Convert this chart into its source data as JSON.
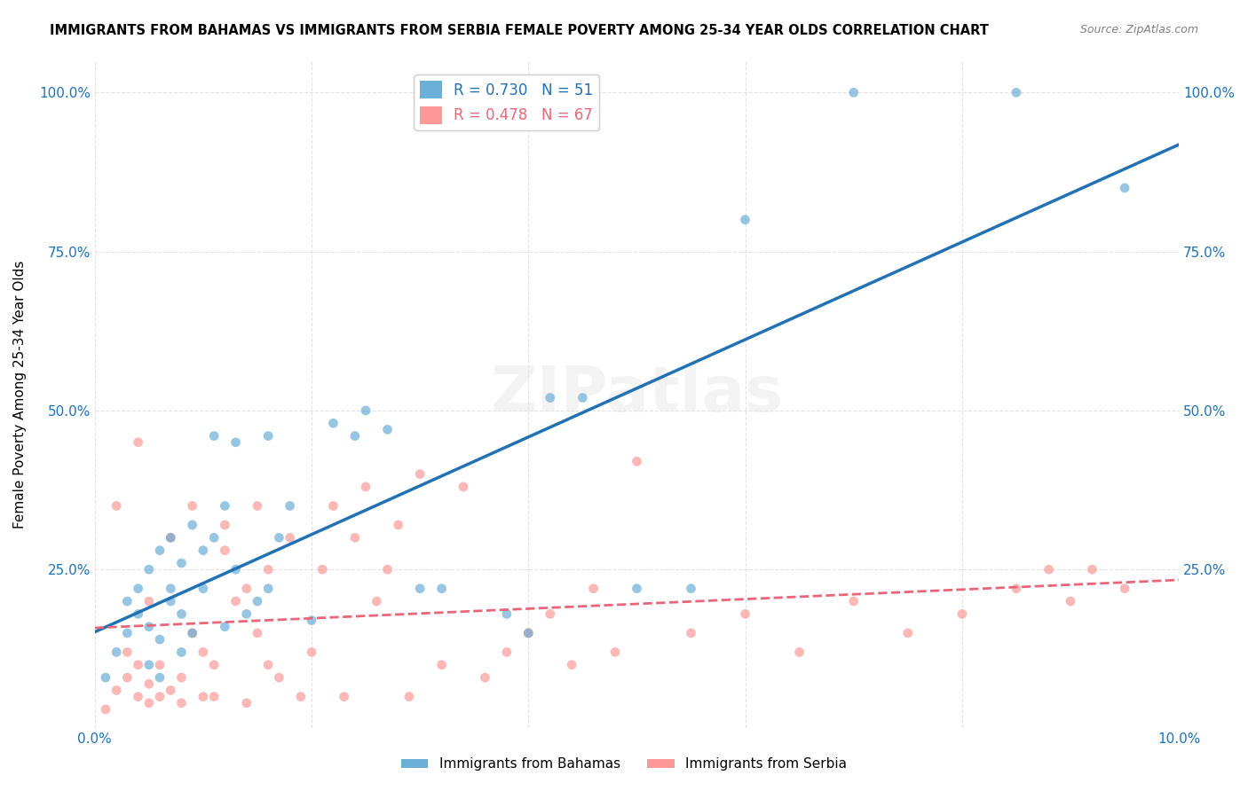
{
  "title": "IMMIGRANTS FROM BAHAMAS VS IMMIGRANTS FROM SERBIA FEMALE POVERTY AMONG 25-34 YEAR OLDS CORRELATION CHART",
  "source": "Source: ZipAtlas.com",
  "xlabel": "",
  "ylabel": "Female Poverty Among 25-34 Year Olds",
  "xlim": [
    0.0,
    0.1
  ],
  "ylim": [
    0.0,
    1.05
  ],
  "x_ticks": [
    0.0,
    0.02,
    0.04,
    0.06,
    0.08,
    0.1
  ],
  "x_tick_labels": [
    "0.0%",
    "",
    "",
    "",
    "",
    "10.0%"
  ],
  "y_ticks": [
    0.0,
    0.25,
    0.5,
    0.75,
    1.0
  ],
  "y_tick_labels": [
    "",
    "25.0%",
    "50.0%",
    "75.0%",
    "100.0%"
  ],
  "blue_R": 0.73,
  "blue_N": 51,
  "pink_R": 0.478,
  "pink_N": 67,
  "blue_color": "#6baed6",
  "pink_color": "#fb9a99",
  "blue_line_color": "#2171b5",
  "pink_line_color": "#e9667a",
  "watermark": "ZIPatlas",
  "blue_scatter_x": [
    0.001,
    0.002,
    0.003,
    0.003,
    0.004,
    0.004,
    0.005,
    0.005,
    0.005,
    0.006,
    0.006,
    0.006,
    0.007,
    0.007,
    0.007,
    0.008,
    0.008,
    0.008,
    0.009,
    0.009,
    0.01,
    0.01,
    0.011,
    0.011,
    0.012,
    0.012,
    0.013,
    0.013,
    0.014,
    0.015,
    0.016,
    0.016,
    0.017,
    0.018,
    0.02,
    0.022,
    0.024,
    0.025,
    0.027,
    0.03,
    0.032,
    0.038,
    0.04,
    0.042,
    0.045,
    0.05,
    0.055,
    0.06,
    0.07,
    0.085,
    0.095
  ],
  "blue_scatter_y": [
    0.08,
    0.12,
    0.2,
    0.15,
    0.18,
    0.22,
    0.1,
    0.16,
    0.25,
    0.08,
    0.14,
    0.28,
    0.2,
    0.22,
    0.3,
    0.12,
    0.18,
    0.26,
    0.15,
    0.32,
    0.22,
    0.28,
    0.3,
    0.46,
    0.16,
    0.35,
    0.25,
    0.45,
    0.18,
    0.2,
    0.22,
    0.46,
    0.3,
    0.35,
    0.17,
    0.48,
    0.46,
    0.5,
    0.47,
    0.22,
    0.22,
    0.18,
    0.15,
    0.52,
    0.52,
    0.22,
    0.22,
    0.8,
    1.0,
    1.0,
    0.85
  ],
  "pink_scatter_x": [
    0.001,
    0.002,
    0.002,
    0.003,
    0.003,
    0.004,
    0.004,
    0.004,
    0.005,
    0.005,
    0.005,
    0.006,
    0.006,
    0.007,
    0.007,
    0.008,
    0.008,
    0.009,
    0.009,
    0.01,
    0.01,
    0.011,
    0.011,
    0.012,
    0.012,
    0.013,
    0.014,
    0.014,
    0.015,
    0.015,
    0.016,
    0.016,
    0.017,
    0.018,
    0.019,
    0.02,
    0.021,
    0.022,
    0.023,
    0.024,
    0.025,
    0.026,
    0.027,
    0.028,
    0.029,
    0.03,
    0.032,
    0.034,
    0.036,
    0.038,
    0.04,
    0.042,
    0.044,
    0.046,
    0.048,
    0.05,
    0.055,
    0.06,
    0.065,
    0.07,
    0.075,
    0.08,
    0.085,
    0.088,
    0.09,
    0.092,
    0.095
  ],
  "pink_scatter_y": [
    0.03,
    0.06,
    0.35,
    0.08,
    0.12,
    0.05,
    0.1,
    0.45,
    0.04,
    0.07,
    0.2,
    0.05,
    0.1,
    0.06,
    0.3,
    0.04,
    0.08,
    0.35,
    0.15,
    0.05,
    0.12,
    0.05,
    0.1,
    0.28,
    0.32,
    0.2,
    0.04,
    0.22,
    0.15,
    0.35,
    0.1,
    0.25,
    0.08,
    0.3,
    0.05,
    0.12,
    0.25,
    0.35,
    0.05,
    0.3,
    0.38,
    0.2,
    0.25,
    0.32,
    0.05,
    0.4,
    0.1,
    0.38,
    0.08,
    0.12,
    0.15,
    0.18,
    0.1,
    0.22,
    0.12,
    0.42,
    0.15,
    0.18,
    0.12,
    0.2,
    0.15,
    0.18,
    0.22,
    0.25,
    0.2,
    0.25,
    0.22
  ]
}
